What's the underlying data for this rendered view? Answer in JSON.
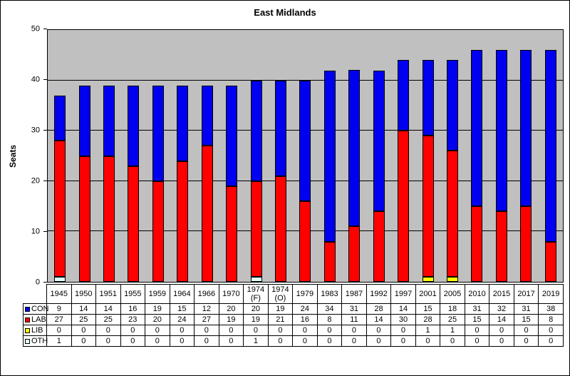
{
  "chart": {
    "title": "East Midlands",
    "ylabel": "Seats"
  },
  "colors": {
    "plot_background": "#C0C0C0",
    "gridline": "#000000",
    "con": "#0000F0",
    "lab": "#FF0000",
    "lib": "#FFFF00",
    "oth": "#E0FFFF"
  },
  "chart_data": {
    "type": "bar",
    "stacked": true,
    "title": "East Midlands",
    "xlabel": "",
    "ylabel": "Seats",
    "ylim": [
      0,
      50
    ],
    "yticks": [
      0,
      10,
      20,
      30,
      40,
      50
    ],
    "grid": true,
    "legend_position": "table-left",
    "stack_order_bottom_to_top": [
      "OTH",
      "LIB",
      "LAB",
      "CON"
    ],
    "categories": [
      "1945",
      "1950",
      "1951",
      "1955",
      "1959",
      "1964",
      "1966",
      "1970",
      "1974 (F)",
      "1974 (O)",
      "1979",
      "1983",
      "1987",
      "1992",
      "1997",
      "2001",
      "2005",
      "2010",
      "2015",
      "2017",
      "2019"
    ],
    "series": [
      {
        "name": "CON",
        "color": "#0000F0",
        "values": [
          9,
          14,
          14,
          16,
          19,
          15,
          12,
          20,
          20,
          19,
          24,
          34,
          31,
          28,
          14,
          15,
          18,
          31,
          32,
          31,
          38
        ]
      },
      {
        "name": "LAB",
        "color": "#FF0000",
        "values": [
          27,
          25,
          25,
          23,
          20,
          24,
          27,
          19,
          19,
          21,
          16,
          8,
          11,
          14,
          30,
          28,
          25,
          15,
          14,
          15,
          8
        ]
      },
      {
        "name": "LIB",
        "color": "#FFFF00",
        "values": [
          0,
          0,
          0,
          0,
          0,
          0,
          0,
          0,
          0,
          0,
          0,
          0,
          0,
          0,
          0,
          1,
          1,
          0,
          0,
          0,
          0
        ]
      },
      {
        "name": "OTH",
        "color": "#E0FFFF",
        "values": [
          1,
          0,
          0,
          0,
          0,
          0,
          0,
          0,
          1,
          0,
          0,
          0,
          0,
          0,
          0,
          0,
          0,
          0,
          0,
          0,
          0
        ]
      }
    ]
  }
}
